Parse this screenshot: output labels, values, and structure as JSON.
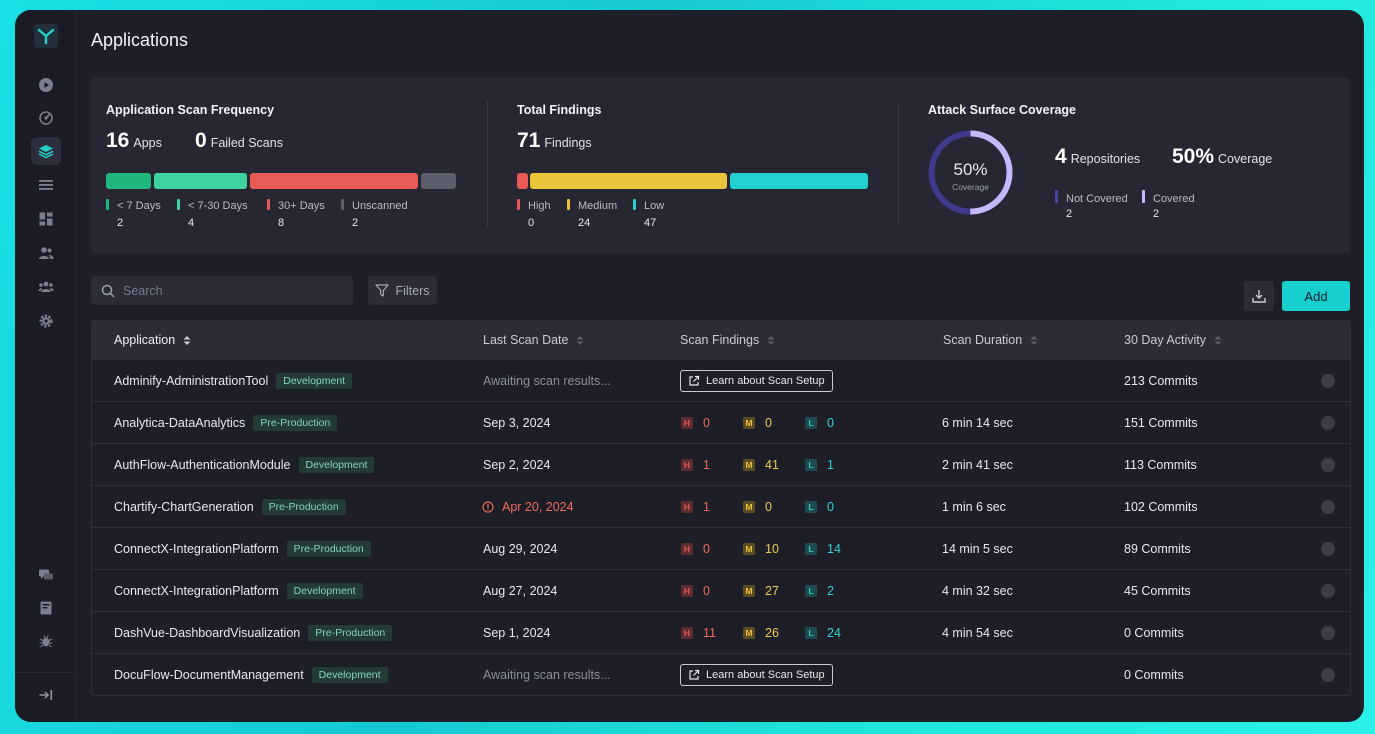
{
  "page": {
    "title": "Applications"
  },
  "sidebar": {
    "items": [
      {
        "icon": "play-icon"
      },
      {
        "icon": "radar-icon"
      },
      {
        "icon": "layers-icon",
        "active": true
      },
      {
        "icon": "list-icon"
      },
      {
        "icon": "dashboard-icon"
      },
      {
        "icon": "users-icon"
      },
      {
        "icon": "team-icon"
      },
      {
        "icon": "gear-icon"
      }
    ],
    "bottom": [
      {
        "icon": "chat-icon"
      },
      {
        "icon": "book-icon"
      },
      {
        "icon": "bug-icon"
      },
      {
        "icon": "collapse-icon"
      }
    ]
  },
  "stats": {
    "scan_frequency": {
      "title": "Application Scan Frequency",
      "apps_num": "16",
      "apps_label": "Apps",
      "failed_num": "0",
      "failed_label": "Failed Scans",
      "legend": [
        {
          "label": "< 7 Days",
          "value": "2",
          "color": "#1fb77c"
        },
        {
          "label": "< 7-30 Days",
          "value": "4",
          "color": "#3fd3a1"
        },
        {
          "label": "30+ Days",
          "value": "8",
          "color": "#e85a56"
        },
        {
          "label": "Unscanned",
          "value": "2",
          "color": "#5b5e6b"
        }
      ]
    },
    "total_findings": {
      "title": "Total Findings",
      "num": "71",
      "label": "Findings",
      "legend": [
        {
          "label": "High",
          "value": "0",
          "color": "#e85a56"
        },
        {
          "label": "Medium",
          "value": "24",
          "color": "#eac53a"
        },
        {
          "label": "Low",
          "value": "47",
          "color": "#21d0cf"
        }
      ]
    },
    "coverage": {
      "title": "Attack Surface Coverage",
      "donut_value": "50%",
      "donut_label": "Coverage",
      "fraction": 0.5,
      "repos_num": "4",
      "repos_label": "Repositories",
      "cov_num": "50%",
      "cov_label": "Coverage",
      "legend": [
        {
          "label": "Not Covered",
          "value": "2",
          "color": "#4b44a8"
        },
        {
          "label": "Covered",
          "value": "2",
          "color": "#c5b8ff"
        }
      ]
    }
  },
  "toolbar": {
    "search_placeholder": "Search",
    "filters_label": "Filters",
    "add_label": "Add"
  },
  "table": {
    "headers": [
      "Application",
      "Last Scan Date",
      "Scan Findings",
      "Scan Duration",
      "30 Day Activity"
    ],
    "learn_label": "Learn about Scan Setup",
    "rows": [
      {
        "app": "Adminify-AdministrationTool",
        "env": "Development",
        "date": "Awaiting scan results...",
        "date_state": "awaiting",
        "findings": null,
        "duration": "",
        "activity": "213 Commits"
      },
      {
        "app": "Analytica-DataAnalytics",
        "env": "Pre-Production",
        "date": "Sep 3, 2024",
        "date_state": "normal",
        "findings": {
          "h": "0",
          "m": "0",
          "l": "0"
        },
        "duration": "6 min 14 sec",
        "activity": "151 Commits"
      },
      {
        "app": "AuthFlow-AuthenticationModule",
        "env": "Development",
        "date": "Sep 2, 2024",
        "date_state": "normal",
        "findings": {
          "h": "1",
          "m": "41",
          "l": "1"
        },
        "duration": "2 min 41 sec",
        "activity": "113 Commits"
      },
      {
        "app": "Chartify-ChartGeneration",
        "env": "Pre-Production",
        "date": "Apr 20, 2024",
        "date_state": "overdue",
        "findings": {
          "h": "1",
          "m": "0",
          "l": "0"
        },
        "duration": "1 min 6 sec",
        "activity": "102 Commits"
      },
      {
        "app": "ConnectX-IntegrationPlatform",
        "env": "Pre-Production",
        "date": "Aug 29, 2024",
        "date_state": "normal",
        "findings": {
          "h": "0",
          "m": "10",
          "l": "14"
        },
        "duration": "14 min 5 sec",
        "activity": "89 Commits"
      },
      {
        "app": "ConnectX-IntegrationPlatform",
        "env": "Development",
        "date": "Aug 27, 2024",
        "date_state": "normal",
        "findings": {
          "h": "0",
          "m": "27",
          "l": "2"
        },
        "duration": "4 min 32 sec",
        "activity": "45 Commits"
      },
      {
        "app": "DashVue-DashboardVisualization",
        "env": "Pre-Production",
        "date": "Sep 1, 2024",
        "date_state": "normal",
        "findings": {
          "h": "11",
          "m": "26",
          "l": "24"
        },
        "duration": "4 min 54 sec",
        "activity": "0 Commits"
      },
      {
        "app": "DocuFlow-DocumentManagement",
        "env": "Development",
        "date": "Awaiting scan results...",
        "date_state": "awaiting",
        "findings": null,
        "duration": "",
        "activity": "0 Commits"
      }
    ]
  },
  "colors": {
    "accent": "#18cfcf",
    "background": "#1d1e27",
    "panel": "#262733"
  }
}
